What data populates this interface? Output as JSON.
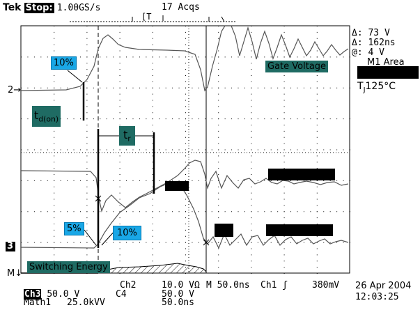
{
  "header": {
    "brand": "Tek",
    "stop": "Stop:",
    "rate": "1.00GS/s",
    "acqs": "17 Acqs",
    "trigger_marker": "[T"
  },
  "readouts": {
    "delta_v": "Δ: 73 V",
    "delta_t": "Δ: 162ns",
    "at_v": "@: 4 V",
    "m1_area": "M1 Area",
    "tj_main": "T",
    "tj_sub": "J",
    "tj_value": "125°C"
  },
  "labels": {
    "gate_voltage": "Gate Voltage",
    "ten_pct_top": "10%",
    "td_on_main": "t",
    "td_on_sub": "d(on)",
    "tr_main": "t",
    "tr_sub": "r",
    "five_pct": "5%",
    "ten_pct_bottom": "10%",
    "switching_energy": "Switching Energy"
  },
  "markers": {
    "ch2_marker": "2",
    "ch3_marker": "3",
    "math_marker": "M"
  },
  "bottom": {
    "ch3_tag": "Ch3",
    "ch3_scale": "50.0 V",
    "ch2": "Ch2",
    "ch2_scale": "10.0 VΩ",
    "ch4": "C4",
    "ch4_scale": "50.0 V",
    "timebase": "M 50.0ns",
    "trigger": "Ch1 ʃ",
    "trigger_level": "380mV",
    "math1": "Math1",
    "math1_scale": "25.0kVV",
    "math1_time": "50.0ns",
    "date": "26 Apr 2004",
    "time": "12:03:25"
  },
  "colors": {
    "teal": "#1f6b63",
    "blue": "#19a7e6",
    "trace": "#333333",
    "grid": "#000000"
  }
}
